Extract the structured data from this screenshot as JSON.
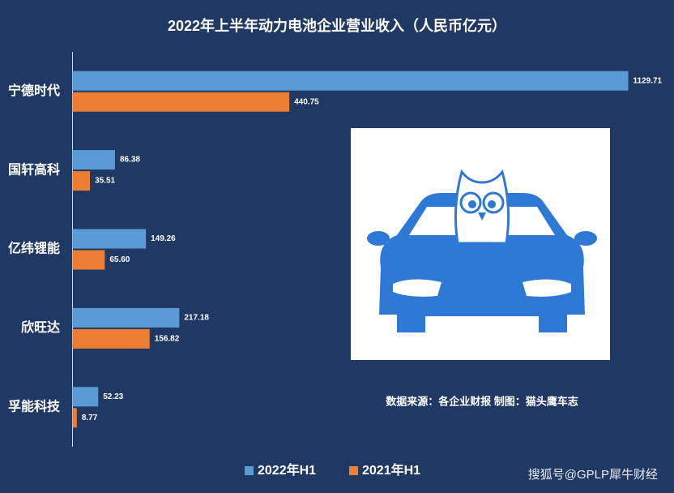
{
  "chart_data": {
    "type": "hbar",
    "title": "2022年上半年动力电池企业营业收入（人民币亿元）",
    "categories": [
      "宁德时代",
      "国轩高科",
      "亿纬锂能",
      "欣旺达",
      "孚能科技"
    ],
    "series": [
      {
        "name": "2022年H1",
        "color": "#5b9bd5",
        "values": [
          1129.71,
          86.38,
          149.26,
          217.18,
          52.23
        ],
        "value_labels": [
          "1129.71",
          "86.38",
          "149.26",
          "217.18",
          "52.23"
        ]
      },
      {
        "name": "2021年H1",
        "color": "#ed7d31",
        "values": [
          440.75,
          35.51,
          65.6,
          156.82,
          8.77
        ],
        "value_labels": [
          "440.75",
          "35.51",
          "65.60",
          "156.82",
          "8.77"
        ]
      }
    ],
    "legend": "bottom",
    "annotations": [
      "数据来源：各企业财报  制图：猫头鹰车志"
    ],
    "watermark": "搜狐号@GPLP犀牛财经"
  }
}
